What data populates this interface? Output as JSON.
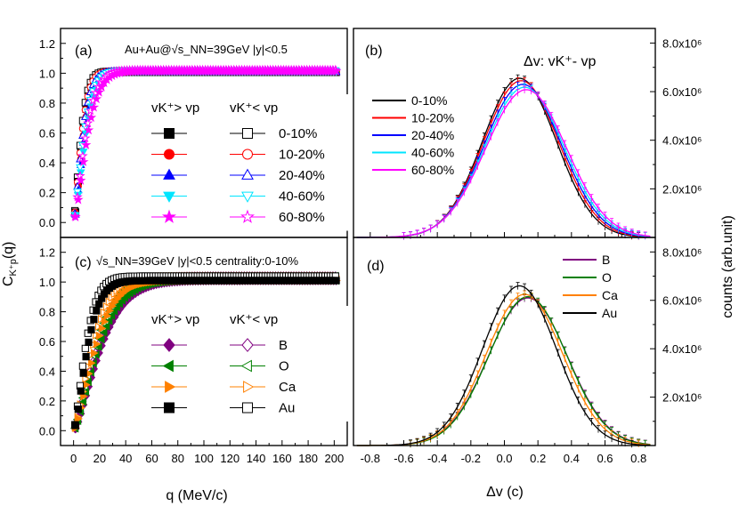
{
  "figure": {
    "ylabel_left": "C",
    "ylabel_left_sub": "K⁺p",
    "ylabel_left_suffix": "(q)",
    "ylabel_right": "counts (arb.unit)",
    "xlabel_left": "q (MeV/c)",
    "xlabel_right": "Δv (c)"
  },
  "chart_data": [
    {
      "panel": "a",
      "type": "scatter",
      "panel_label": "(a)",
      "annotation": "Au+Au@√s_NN=39GeV |y|<0.5",
      "xlim": [
        -10,
        210
      ],
      "ylim": [
        -0.1,
        1.3
      ],
      "xticks": [],
      "yticks": [
        0.0,
        0.2,
        0.4,
        0.6,
        0.8,
        1.0,
        1.2
      ],
      "ytick_labels": [
        "0.0",
        "0.2",
        "0.4",
        "0.6",
        "0.8",
        "1.0",
        "1.2"
      ],
      "legend_header_left": "vK⁺> vp",
      "legend_header_right": "vK⁺< vp",
      "series": [
        {
          "name": "0-10%",
          "color": "#000000",
          "marker": "square",
          "tau": 7.0,
          "sat": 1.01
        },
        {
          "name": "10-20%",
          "color": "#ff0000",
          "marker": "circle",
          "tau": 7.8,
          "sat": 1.012
        },
        {
          "name": "20-40%",
          "color": "#0000ff",
          "marker": "triangle-up",
          "tau": 8.6,
          "sat": 1.013
        },
        {
          "name": "40-60%",
          "color": "#00e5ff",
          "marker": "triangle-down",
          "tau": 9.8,
          "sat": 1.015
        },
        {
          "name": "60-80%",
          "color": "#ff00ff",
          "marker": "star",
          "tau": 11.5,
          "sat": 1.018
        }
      ]
    },
    {
      "panel": "b",
      "type": "line",
      "panel_label": "(b)",
      "annotation": "Δv: vK⁺- vp",
      "xlim": [
        -0.9,
        0.9
      ],
      "ylim": [
        0,
        8.6
      ],
      "yticks": [
        2,
        4,
        6,
        8
      ],
      "ytick_labels": [
        "2.0x10⁶",
        "4.0x10⁶",
        "6.0x10⁶",
        "8.0x10⁶"
      ],
      "series": [
        {
          "name": "0-10%",
          "color": "#000000",
          "mu": 0.09,
          "sigma": 0.22,
          "peak": 6.55
        },
        {
          "name": "10-20%",
          "color": "#ff0000",
          "mu": 0.1,
          "sigma": 0.225,
          "peak": 6.45
        },
        {
          "name": "20-40%",
          "color": "#0000ff",
          "mu": 0.11,
          "sigma": 0.23,
          "peak": 6.3
        },
        {
          "name": "40-60%",
          "color": "#00e5ff",
          "mu": 0.12,
          "sigma": 0.235,
          "peak": 6.18
        },
        {
          "name": "60-80%",
          "color": "#ff00ff",
          "mu": 0.13,
          "sigma": 0.24,
          "peak": 6.08
        }
      ]
    },
    {
      "panel": "c",
      "type": "scatter",
      "panel_label": "(c)",
      "annotation": "√s_NN=39GeV |y|<0.5 centrality:0-10%",
      "xlim": [
        -10,
        210
      ],
      "ylim": [
        -0.1,
        1.3
      ],
      "xticks": [
        0,
        20,
        40,
        60,
        80,
        100,
        120,
        140,
        160,
        180,
        200
      ],
      "xtick_labels": [
        "0",
        "20",
        "40",
        "60",
        "80",
        "100",
        "120",
        "140",
        "160",
        "180",
        "200"
      ],
      "yticks": [
        0.0,
        0.2,
        0.4,
        0.6,
        0.8,
        1.0,
        1.2
      ],
      "ytick_labels": [
        "0.0",
        "0.2",
        "0.4",
        "0.6",
        "0.8",
        "1.0",
        "1.2"
      ],
      "legend_header_left": "vK⁺> vp",
      "legend_header_right": "vK⁺< vp",
      "series": [
        {
          "name": "B",
          "color": "#800080",
          "marker": "diamond",
          "tau": 24,
          "sat": 1.03
        },
        {
          "name": "O",
          "color": "#008000",
          "marker": "triangle-left",
          "tau": 22,
          "sat": 1.03
        },
        {
          "name": "Ca",
          "color": "#ff8000",
          "marker": "triangle-right",
          "tau": 19,
          "sat": 1.03
        },
        {
          "name": "Au",
          "color": "#000000",
          "marker": "square",
          "tau": 12,
          "sat": 1.03
        }
      ]
    },
    {
      "panel": "d",
      "type": "line",
      "panel_label": "(d)",
      "xlim": [
        -0.9,
        0.9
      ],
      "ylim": [
        0,
        8.6
      ],
      "xticks": [
        -0.8,
        -0.6,
        -0.4,
        -0.2,
        0.0,
        0.2,
        0.4,
        0.6,
        0.8
      ],
      "xtick_labels": [
        "-0.8",
        "-0.6",
        "-0.4",
        "-0.2",
        "0.0",
        "0.2",
        "0.4",
        "0.6",
        "0.8"
      ],
      "yticks": [
        2,
        4,
        6,
        8
      ],
      "ytick_labels": [
        "2.0x10⁶",
        "4.0x10⁶",
        "6.0x10⁶",
        "8.0x10⁶"
      ],
      "series": [
        {
          "name": "B",
          "color": "#800080",
          "mu": 0.14,
          "sigma": 0.235,
          "peak": 6.1
        },
        {
          "name": "O",
          "color": "#008000",
          "mu": 0.14,
          "sigma": 0.232,
          "peak": 6.15
        },
        {
          "name": "Ca",
          "color": "#ff8000",
          "mu": 0.12,
          "sigma": 0.228,
          "peak": 6.25
        },
        {
          "name": "Au",
          "color": "#000000",
          "mu": 0.09,
          "sigma": 0.22,
          "peak": 6.6
        }
      ]
    }
  ]
}
